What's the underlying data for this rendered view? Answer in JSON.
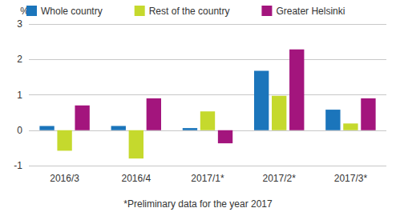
{
  "chart_data": {
    "type": "bar",
    "categories": [
      "2016/3",
      "2016/4",
      "2017/1*",
      "2017/2*",
      "2017/3*"
    ],
    "series": [
      {
        "name": "Whole country",
        "color": "#1b75bb",
        "values": [
          0.12,
          0.12,
          0.06,
          1.68,
          0.58
        ]
      },
      {
        "name": "Rest of the country",
        "color": "#c5d92d",
        "values": [
          -0.58,
          -0.8,
          0.53,
          0.97,
          0.19
        ]
      },
      {
        "name": "Greater Helsinki",
        "color": "#a3157d",
        "values": [
          0.7,
          0.9,
          -0.37,
          2.28,
          0.9
        ]
      }
    ],
    "ylabel": "%",
    "ylim": [
      -1,
      3
    ],
    "yticks": [
      -1,
      0,
      1,
      2,
      3
    ],
    "grid": true,
    "legend": "top",
    "annotations": [
      "*Preliminary data for the year 2017"
    ]
  }
}
